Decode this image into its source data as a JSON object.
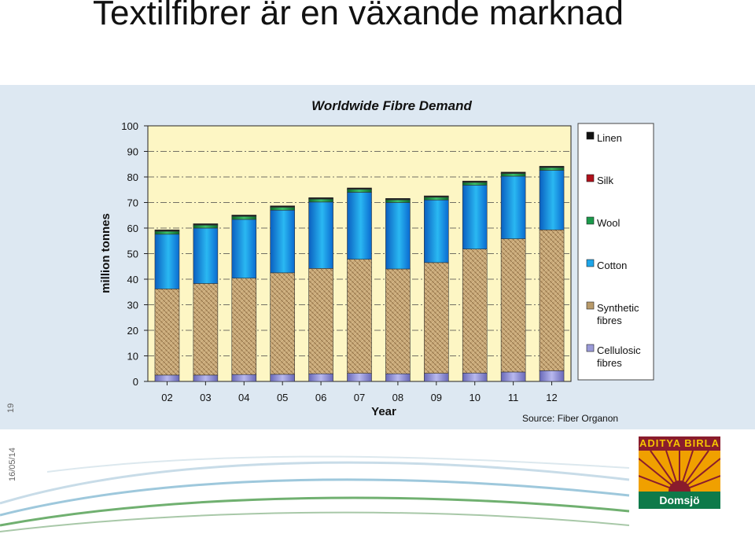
{
  "slide": {
    "title": "Textilfibrer är en växande marknad",
    "page_number": "19",
    "date": "16/05/14"
  },
  "logo": {
    "brand_top": "ADITYA BIRLA",
    "brand_bottom": "Domsjö"
  },
  "colors": {
    "panel_bg": "#dde8f2",
    "plot_bg": "#fdf6c4",
    "cellulosic": "#9a9ad8",
    "synthetic": "#b89a6a",
    "cotton": "#1ea6ea",
    "wool": "#1a9a4a",
    "silk": "#b0101a",
    "linen": "#111111"
  },
  "chart_data": {
    "type": "bar",
    "stacked": true,
    "title": "Worldwide Fibre Demand",
    "xlabel": "Year",
    "ylabel": "million tonnes",
    "ylim": [
      0,
      100
    ],
    "yticks": [
      0,
      10,
      20,
      30,
      40,
      50,
      60,
      70,
      80,
      90,
      100
    ],
    "grid": true,
    "legend_position": "right",
    "source": "Source: Fiber Organon",
    "categories": [
      "02",
      "03",
      "04",
      "05",
      "06",
      "07",
      "08",
      "09",
      "10",
      "11",
      "12"
    ],
    "series": [
      {
        "name": "Cellulosic fibres",
        "color": "#9a9ad8",
        "values": [
          2.5,
          2.5,
          2.7,
          2.8,
          3.0,
          3.2,
          3.0,
          3.2,
          3.3,
          3.7,
          4.2
        ]
      },
      {
        "name": "Synthetic fibres",
        "color": "#b89a6a",
        "values": [
          33.7,
          35.8,
          37.7,
          39.7,
          41.2,
          44.6,
          41.0,
          43.3,
          48.5,
          52.1,
          55.1
        ]
      },
      {
        "name": "Cotton",
        "color": "#1ea6ea",
        "values": [
          21.4,
          21.7,
          23.0,
          24.5,
          26.0,
          26.2,
          26.0,
          24.5,
          25.0,
          24.5,
          23.3
        ]
      },
      {
        "name": "Wool",
        "color": "#1a9a4a",
        "values": [
          1.2,
          1.2,
          1.2,
          1.2,
          1.2,
          1.2,
          1.1,
          1.1,
          1.1,
          1.1,
          1.1
        ]
      },
      {
        "name": "Silk",
        "color": "#b0101a",
        "values": [
          0.1,
          0.1,
          0.1,
          0.1,
          0.1,
          0.1,
          0.1,
          0.1,
          0.1,
          0.1,
          0.1
        ]
      },
      {
        "name": "Linen",
        "color": "#111111",
        "values": [
          0.4,
          0.4,
          0.4,
          0.4,
          0.4,
          0.4,
          0.4,
          0.4,
          0.4,
          0.4,
          0.4
        ]
      }
    ]
  }
}
